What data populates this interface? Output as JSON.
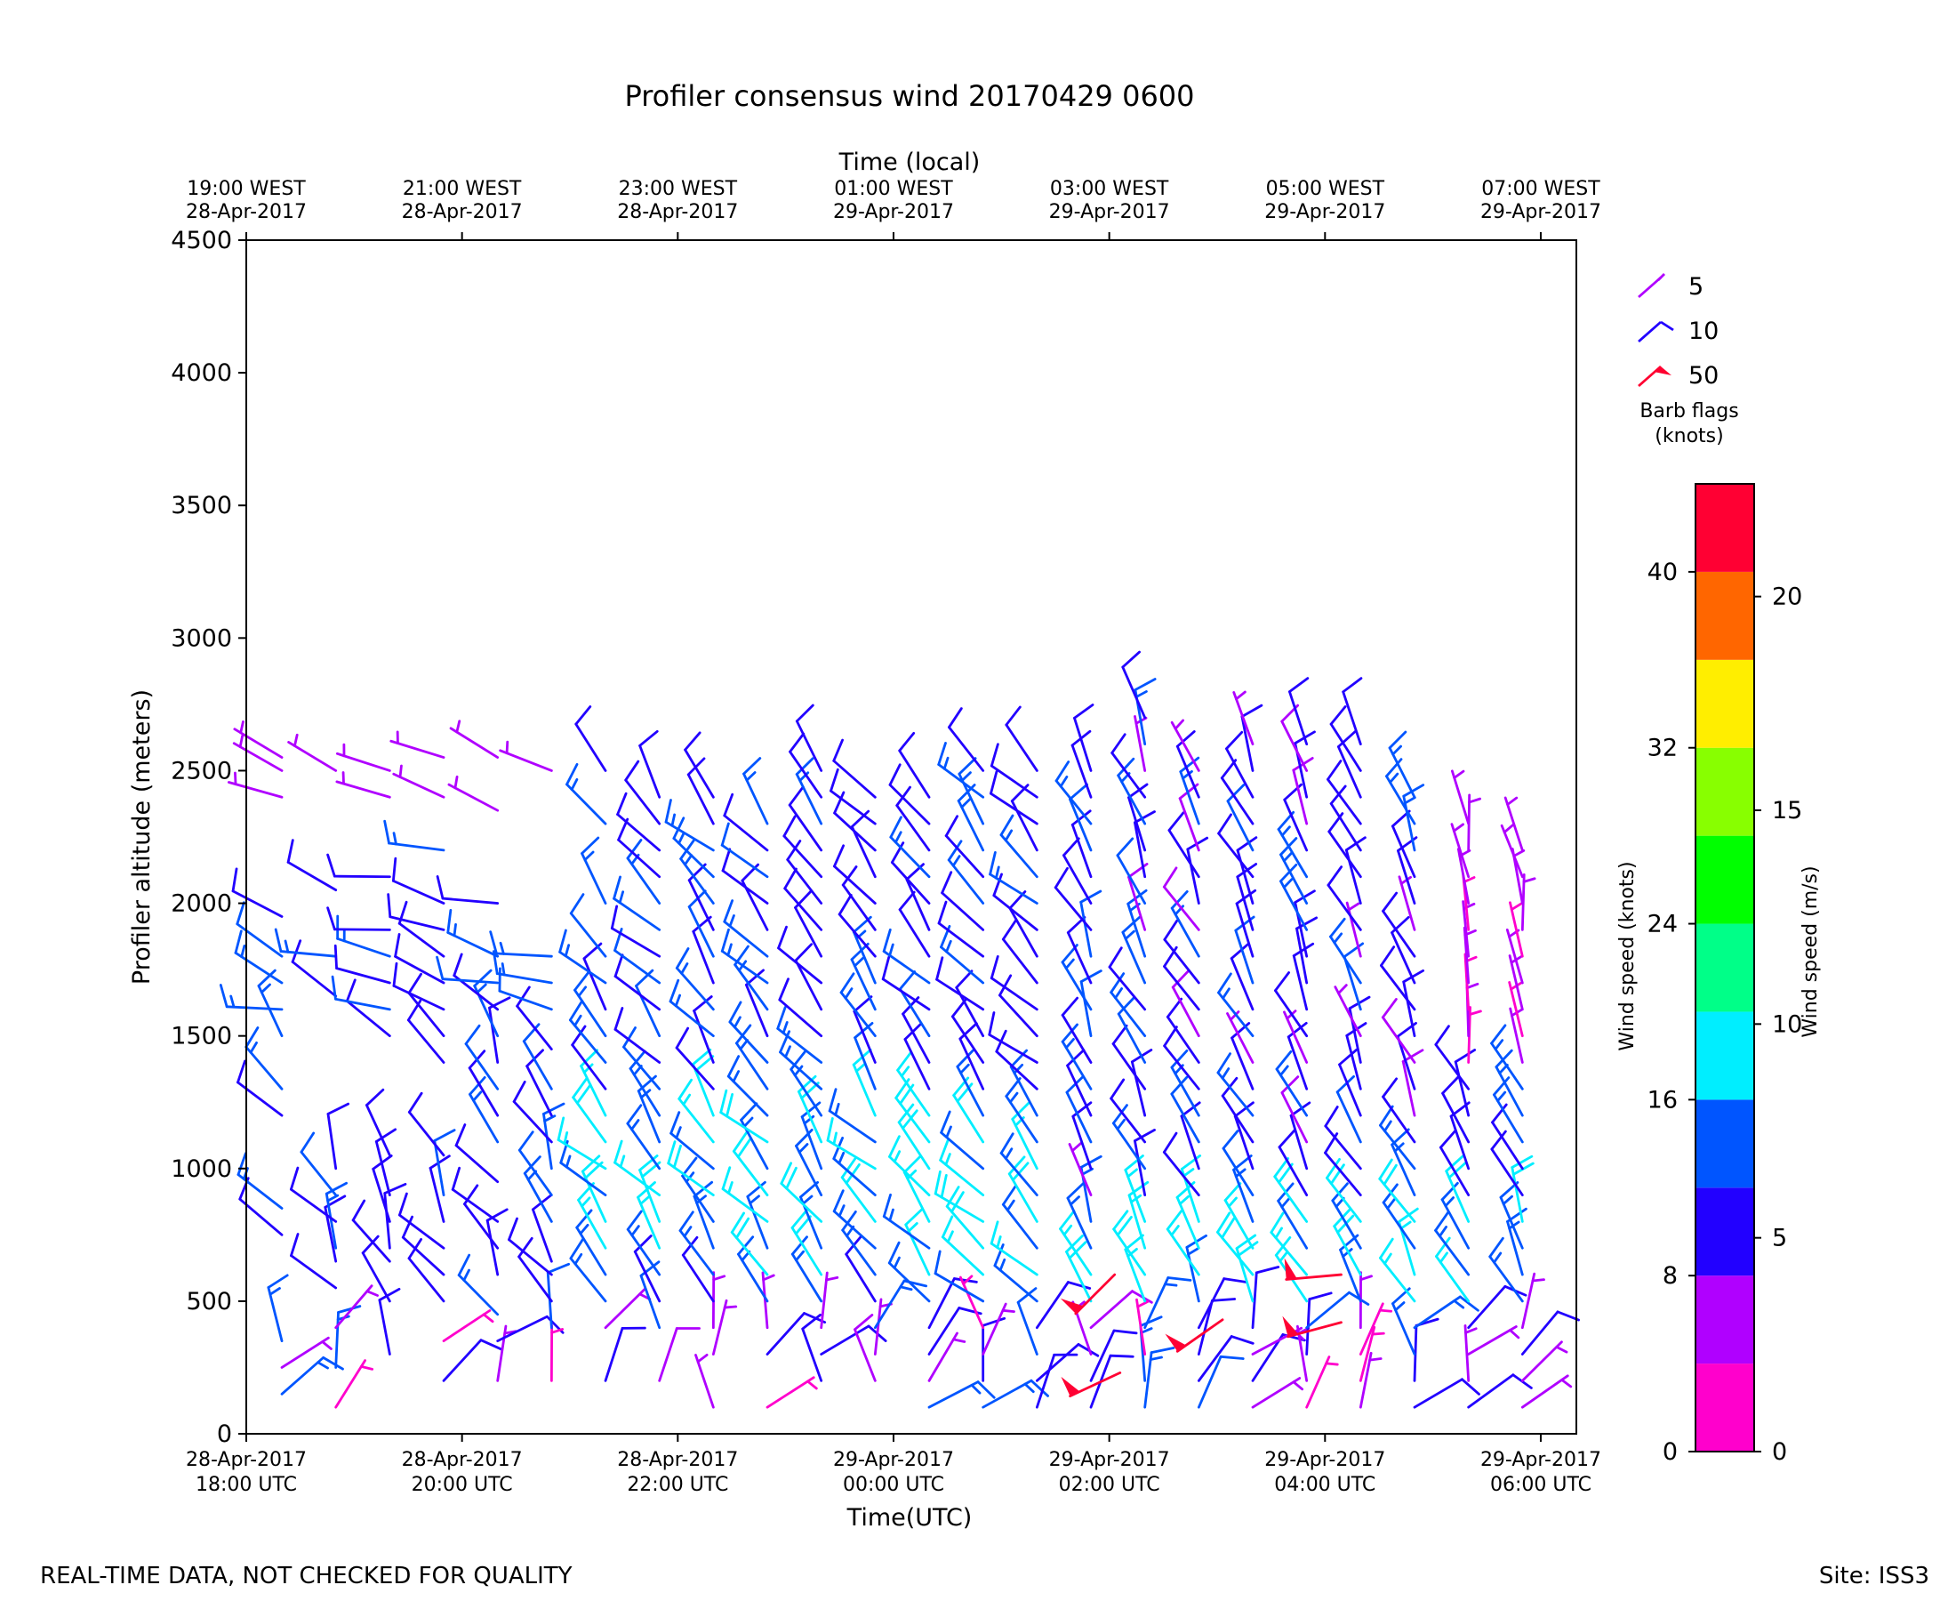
{
  "chart_data": {
    "type": "wind_barb_time_height",
    "title": "Profiler consensus wind 20170429 0600",
    "top_axis_label": "Time (local)",
    "top_ticks": [
      {
        "h": 18,
        "line1": "19:00 WEST",
        "line2": "28-Apr-2017"
      },
      {
        "h": 20,
        "line1": "21:00 WEST",
        "line2": "28-Apr-2017"
      },
      {
        "h": 22,
        "line1": "23:00 WEST",
        "line2": "28-Apr-2017"
      },
      {
        "h": 24,
        "line1": "01:00 WEST",
        "line2": "29-Apr-2017"
      },
      {
        "h": 26,
        "line1": "03:00 WEST",
        "line2": "29-Apr-2017"
      },
      {
        "h": 28,
        "line1": "05:00 WEST",
        "line2": "29-Apr-2017"
      },
      {
        "h": 30,
        "line1": "07:00 WEST",
        "line2": "29-Apr-2017"
      }
    ],
    "xlabel": "Time(UTC)",
    "x_ticks": [
      {
        "h": 18,
        "line1": "28-Apr-2017",
        "line2": "18:00 UTC"
      },
      {
        "h": 20,
        "line1": "28-Apr-2017",
        "line2": "20:00 UTC"
      },
      {
        "h": 22,
        "line1": "28-Apr-2017",
        "line2": "22:00 UTC"
      },
      {
        "h": 24,
        "line1": "29-Apr-2017",
        "line2": "00:00 UTC"
      },
      {
        "h": 26,
        "line1": "29-Apr-2017",
        "line2": "02:00 UTC"
      },
      {
        "h": 28,
        "line1": "29-Apr-2017",
        "line2": "04:00 UTC"
      },
      {
        "h": 30,
        "line1": "29-Apr-2017",
        "line2": "06:00 UTC"
      }
    ],
    "xlim_hours_utc": [
      18,
      30.33
    ],
    "ylabel": "Profiler altitude (meters)",
    "ylim": [
      0,
      4500
    ],
    "yticks": [
      0,
      500,
      1000,
      1500,
      2000,
      2500,
      3000,
      3500,
      4000,
      4500
    ],
    "barb_columns": [
      {
        "time": 18.33,
        "heights": [
          150,
          250,
          350,
          750,
          850,
          1200,
          1300,
          1500,
          1600,
          1700,
          1800,
          1950,
          2400,
          2500,
          2550
        ]
      },
      {
        "time": 18.83,
        "heights": [
          100,
          250,
          400,
          550,
          650,
          700,
          800,
          900,
          1000,
          1650,
          1800,
          2050,
          2500
        ]
      },
      {
        "time": 19.33,
        "heights": [
          300,
          500,
          650,
          700,
          800,
          900,
          1050,
          1500,
          1600,
          1700,
          1800,
          1900,
          2100,
          2400,
          2500
        ]
      },
      {
        "time": 19.83,
        "heights": [
          200,
          350,
          500,
          600,
          700,
          800,
          900,
          1050,
          1400,
          1500,
          1600,
          1700,
          1800,
          1900,
          2000,
          2200,
          2400,
          2550
        ]
      },
      {
        "time": 20.33,
        "heights": [
          200,
          350,
          450,
          600,
          700,
          800,
          950,
          1100,
          1200,
          1300,
          1400,
          1500,
          1600,
          1700,
          1800,
          2000,
          2350,
          2550
        ]
      },
      {
        "time": 20.83,
        "heights": [
          200,
          400,
          500,
          600,
          650,
          800,
          900,
          1000,
          1100,
          1200,
          1300,
          1450,
          1600,
          1700,
          1800,
          2500
        ]
      },
      {
        "time": 21.33,
        "heights": [
          200,
          400,
          500,
          600,
          700,
          800,
          900,
          1000,
          1100,
          1200,
          1300,
          1400,
          1500,
          1600,
          1700,
          1800,
          2000,
          2300,
          2500
        ]
      },
      {
        "time": 21.83,
        "heights": [
          200,
          400,
          500,
          600,
          700,
          800,
          900,
          1000,
          1100,
          1200,
          1300,
          1400,
          1500,
          1600,
          1700,
          1800,
          1900,
          2000,
          2100,
          2200,
          2300,
          2400
        ]
      },
      {
        "time": 22.33,
        "heights": [
          100,
          300,
          400,
          500,
          600,
          700,
          800,
          900,
          1000,
          1100,
          1200,
          1300,
          1400,
          1500,
          1600,
          1700,
          1800,
          1900,
          2000,
          2100,
          2200,
          2300,
          2400
        ]
      },
      {
        "time": 22.83,
        "heights": [
          100,
          300,
          400,
          500,
          600,
          700,
          800,
          900,
          1000,
          1100,
          1200,
          1300,
          1400,
          1500,
          1600,
          1700,
          1800,
          1900,
          2000,
          2100,
          2200,
          2300
        ]
      },
      {
        "time": 23.33,
        "heights": [
          200,
          300,
          400,
          500,
          600,
          700,
          800,
          900,
          1000,
          1100,
          1200,
          1300,
          1400,
          1500,
          1600,
          1700,
          1800,
          1900,
          2000,
          2100,
          2200,
          2300,
          2400,
          2500
        ]
      },
      {
        "time": 23.83,
        "heights": [
          200,
          300,
          400,
          500,
          600,
          700,
          800,
          900,
          1000,
          1100,
          1200,
          1300,
          1400,
          1500,
          1600,
          1700,
          1800,
          1900,
          2000,
          2100,
          2200,
          2300,
          2400
        ]
      },
      {
        "time": 24.33,
        "heights": [
          100,
          200,
          300,
          400,
          500,
          600,
          700,
          800,
          900,
          1000,
          1100,
          1200,
          1300,
          1400,
          1500,
          1600,
          1700,
          1800,
          1900,
          2000,
          2100,
          2200,
          2300,
          2400
        ]
      },
      {
        "time": 24.83,
        "heights": [
          100,
          200,
          300,
          400,
          500,
          600,
          700,
          800,
          900,
          1000,
          1100,
          1200,
          1300,
          1400,
          1500,
          1600,
          1700,
          1800,
          1900,
          2000,
          2100,
          2200,
          2300,
          2400,
          2500
        ]
      },
      {
        "time": 25.33,
        "heights": [
          100,
          200,
          300,
          400,
          500,
          600,
          700,
          800,
          900,
          1000,
          1100,
          1200,
          1300,
          1400,
          1500,
          1600,
          1700,
          1800,
          1900,
          2000,
          2100,
          2200,
          2300,
          2400,
          2500
        ]
      },
      {
        "time": 25.83,
        "heights": [
          100,
          200,
          300,
          400,
          500,
          600,
          700,
          800,
          900,
          1000,
          1100,
          1200,
          1300,
          1400,
          1500,
          1600,
          1700,
          1800,
          1900,
          2000,
          2100,
          2200,
          2300,
          2400,
          2500
        ]
      },
      {
        "time": 26.33,
        "heights": [
          100,
          200,
          300,
          400,
          500,
          600,
          700,
          800,
          900,
          1000,
          1100,
          1200,
          1300,
          1400,
          1500,
          1600,
          1700,
          1800,
          1900,
          2000,
          2100,
          2200,
          2300,
          2400,
          2500,
          2600,
          2700
        ]
      },
      {
        "time": 26.83,
        "heights": [
          100,
          200,
          300,
          400,
          500,
          600,
          700,
          800,
          900,
          1000,
          1100,
          1200,
          1300,
          1400,
          1500,
          1600,
          1700,
          1800,
          1900,
          2000,
          2100,
          2200,
          2300,
          2400,
          2500
        ]
      },
      {
        "time": 27.33,
        "heights": [
          100,
          200,
          300,
          400,
          500,
          600,
          700,
          800,
          900,
          1000,
          1100,
          1200,
          1300,
          1400,
          1500,
          1600,
          1700,
          1800,
          1900,
          2000,
          2100,
          2200,
          2300,
          2400,
          2500,
          2600
        ]
      },
      {
        "time": 27.83,
        "heights": [
          100,
          200,
          300,
          400,
          500,
          600,
          700,
          800,
          900,
          1000,
          1100,
          1200,
          1300,
          1400,
          1500,
          1600,
          1700,
          1800,
          1900,
          2000,
          2100,
          2200,
          2300,
          2400,
          2500,
          2600
        ]
      },
      {
        "time": 28.33,
        "heights": [
          100,
          200,
          300,
          400,
          500,
          600,
          700,
          800,
          900,
          1000,
          1100,
          1200,
          1300,
          1400,
          1500,
          1600,
          1700,
          1800,
          1900,
          2000,
          2100,
          2200,
          2300,
          2400,
          2500,
          2600
        ]
      },
      {
        "time": 28.83,
        "heights": [
          100,
          200,
          300,
          400,
          500,
          600,
          700,
          800,
          900,
          1000,
          1100,
          1200,
          1300,
          1400,
          1500,
          1600,
          1700,
          1800,
          1900,
          2000,
          2100,
          2200,
          2300,
          2400
        ]
      },
      {
        "time": 29.33,
        "heights": [
          100,
          200,
          300,
          400,
          500,
          600,
          700,
          800,
          900,
          1000,
          1100,
          1200,
          1300,
          1400,
          1500,
          1600,
          1700,
          1800,
          1900,
          2000,
          2100,
          2200,
          2300
        ]
      },
      {
        "time": 29.83,
        "heights": [
          100,
          200,
          300,
          400,
          500,
          600,
          700,
          800,
          900,
          1000,
          1100,
          1200,
          1300,
          1400,
          1500,
          1600,
          1700,
          1800,
          1900,
          2000,
          2100,
          2200
        ]
      }
    ],
    "barb_legend": {
      "entries": [
        {
          "value": "5",
          "knots": 5,
          "color": "#b000ff"
        },
        {
          "value": "10",
          "knots": 10,
          "color": "#2200ff"
        },
        {
          "value": "50",
          "knots": 50,
          "color": "#ff0030"
        }
      ],
      "title_line1": "Barb flags",
      "title_line2": "(knots)"
    },
    "colorbar": {
      "colors": [
        "#ff00cc",
        "#b000ff",
        "#2200ff",
        "#0055ff",
        "#00eeff",
        "#00ff88",
        "#00ff00",
        "#88ff00",
        "#ffee00",
        "#ff6600",
        "#ff0033"
      ],
      "knots_min": 0,
      "knots_max": 44,
      "knots_ticks": [
        0,
        8,
        16,
        24,
        32,
        40
      ],
      "ms_ticks": [
        0,
        5,
        10,
        15,
        20
      ],
      "label_knots": "Wind speed (knots)",
      "label_ms": "Wind speed (m/s)"
    }
  },
  "footer": {
    "left": "REAL-TIME DATA, NOT CHECKED FOR QUALITY",
    "right": "Site: ISS3"
  }
}
